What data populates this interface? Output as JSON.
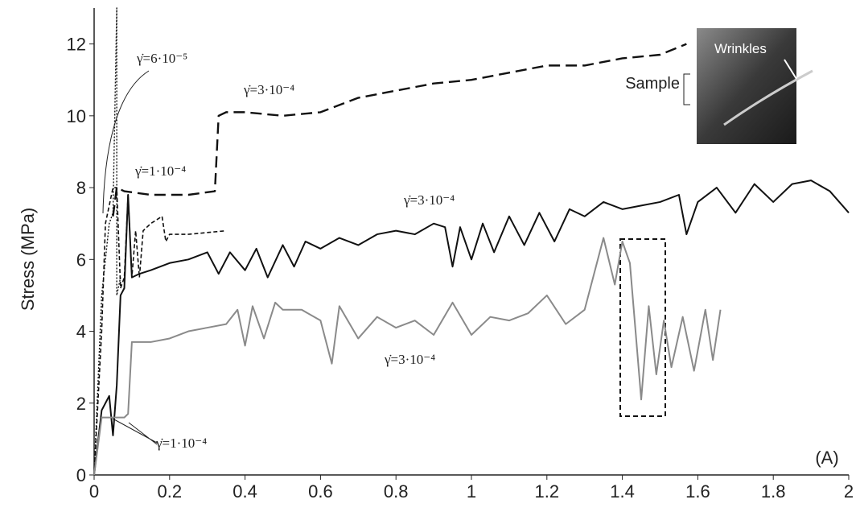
{
  "chart_data": {
    "type": "line",
    "ylabel": "Stress (MPa)",
    "xlim": [
      0,
      2
    ],
    "xticks": [
      0,
      0.2,
      0.4,
      0.6,
      0.8,
      1,
      1.2,
      1.4,
      1.6,
      1.8,
      2
    ],
    "ylim": [
      0,
      13
    ],
    "yticks": [
      0,
      2,
      4,
      6,
      8,
      10,
      12
    ],
    "panel_label": "(A)",
    "annotations": [
      "γ̇=6·10⁻⁵",
      "γ̇=3·10⁻⁴",
      "γ̇=1·10⁻⁴",
      "γ̇=3·10⁻⁴",
      "γ̇=3·10⁻⁴",
      "γ̇=1·10⁻⁴"
    ],
    "inset": {
      "arrow_label": "Wrinkles",
      "side_label": "Sample"
    },
    "series": [
      {
        "color": "#111111",
        "dash": "14 7",
        "width": 2.4,
        "x": [
          0.05,
          0.06,
          0.08,
          0.15,
          0.25,
          0.32,
          0.33,
          0.35,
          0.4,
          0.5,
          0.6,
          0.7,
          0.8,
          0.9,
          1.0,
          1.1,
          1.2,
          1.3,
          1.4,
          1.5,
          1.57
        ],
        "values": [
          7.2,
          8.0,
          7.9,
          7.8,
          7.8,
          7.9,
          10.0,
          10.1,
          10.1,
          10.0,
          10.1,
          10.5,
          10.7,
          10.9,
          11.0,
          11.2,
          11.4,
          11.4,
          11.6,
          11.7,
          12.0
        ]
      },
      {
        "color": "#111111",
        "dash": "5 3",
        "width": 1.6,
        "x": [
          0,
          0.02,
          0.03,
          0.04,
          0.05,
          0.06,
          0.07,
          0.08,
          0.09,
          0.1,
          0.11,
          0.12,
          0.13,
          0.15,
          0.18,
          0.19,
          0.2,
          0.25,
          0.3,
          0.35
        ],
        "values": [
          0,
          4,
          7,
          7.5,
          8,
          8,
          5.2,
          5.5,
          7.8,
          5.5,
          6.8,
          5.5,
          6.8,
          7,
          7.2,
          6.5,
          6.7,
          6.7,
          6.75,
          6.8
        ]
      },
      {
        "color": "#111111",
        "dash": "2 2",
        "width": 1.4,
        "x": [
          0,
          0.02,
          0.04,
          0.05,
          0.06,
          0.06,
          0.07
        ],
        "values": [
          0,
          5,
          7,
          7.3,
          13,
          5,
          5.5
        ]
      },
      {
        "color": "#111111",
        "dash": "",
        "width": 2,
        "x": [
          0,
          0.02,
          0.04,
          0.05,
          0.06,
          0.07,
          0.08,
          0.09,
          0.1,
          0.12,
          0.15,
          0.2,
          0.25,
          0.3,
          0.33,
          0.36,
          0.4,
          0.43,
          0.46,
          0.5,
          0.53,
          0.56,
          0.6,
          0.65,
          0.7,
          0.75,
          0.8,
          0.85,
          0.9,
          0.93,
          0.95,
          0.97,
          1.0,
          1.03,
          1.06,
          1.1,
          1.14,
          1.18,
          1.22,
          1.26,
          1.3,
          1.35,
          1.4,
          1.45,
          1.5,
          1.55,
          1.57,
          1.6,
          1.65,
          1.7,
          1.75,
          1.8,
          1.85,
          1.9,
          1.95,
          2.0
        ],
        "values": [
          0,
          1.8,
          2.2,
          1.1,
          2.5,
          5,
          5.2,
          7.8,
          5.5,
          5.6,
          5.7,
          5.9,
          6.0,
          6.2,
          5.6,
          6.2,
          5.7,
          6.3,
          5.5,
          6.4,
          5.8,
          6.5,
          6.3,
          6.6,
          6.4,
          6.7,
          6.8,
          6.7,
          7.0,
          6.9,
          5.8,
          6.9,
          6.0,
          7.0,
          6.2,
          7.2,
          6.4,
          7.3,
          6.5,
          7.4,
          7.2,
          7.6,
          7.4,
          7.5,
          7.6,
          7.8,
          6.7,
          7.6,
          8.0,
          7.3,
          8.1,
          7.6,
          8.1,
          8.2,
          7.9,
          7.3
        ]
      },
      {
        "color": "#8a8a8a",
        "dash": "",
        "width": 2,
        "x": [
          0,
          0.02,
          0.05,
          0.08,
          0.09,
          0.1,
          0.15,
          0.2,
          0.25,
          0.3,
          0.35,
          0.38,
          0.4,
          0.42,
          0.45,
          0.48,
          0.5,
          0.55,
          0.6,
          0.63,
          0.65,
          0.7,
          0.75,
          0.8,
          0.85,
          0.9,
          0.95,
          1.0,
          1.05,
          1.1,
          1.15,
          1.2,
          1.25,
          1.3,
          1.35,
          1.38,
          1.4,
          1.42,
          1.45,
          1.47,
          1.49,
          1.51,
          1.53,
          1.56,
          1.59,
          1.62,
          1.64,
          1.66
        ],
        "values": [
          0,
          1.6,
          1.6,
          1.6,
          1.7,
          3.7,
          3.7,
          3.8,
          4.0,
          4.1,
          4.2,
          4.6,
          3.6,
          4.7,
          3.8,
          4.8,
          4.6,
          4.6,
          4.3,
          3.1,
          4.7,
          3.8,
          4.4,
          4.1,
          4.3,
          3.9,
          4.8,
          3.9,
          4.4,
          4.3,
          4.5,
          5.0,
          4.2,
          4.6,
          6.6,
          5.3,
          6.5,
          5.9,
          2.1,
          4.7,
          2.8,
          4.3,
          3.0,
          4.4,
          2.9,
          4.6,
          3.2,
          4.6
        ]
      }
    ]
  }
}
